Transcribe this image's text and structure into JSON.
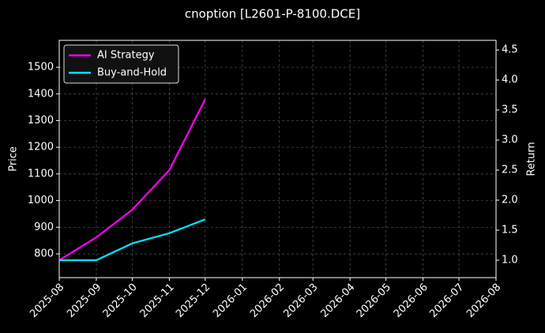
{
  "chart_data": {
    "type": "line",
    "title": "cnoption [L2601-P-8100.DCE]",
    "ylabel": "Price",
    "y2label": "Return",
    "x": [
      "2025-08",
      "2025-09",
      "2025-10",
      "2025-11",
      "2025-12"
    ],
    "series": [
      {
        "name": "AI Strategy",
        "color": "#ff00ff",
        "axis": "y2",
        "values": [
          1.0,
          1.38,
          1.84,
          2.5,
          3.68
        ]
      },
      {
        "name": "Buy-and-Hold",
        "color": "#00e5ff",
        "axis": "y2",
        "values": [
          1.0,
          1.0,
          1.28,
          1.45,
          1.68
        ]
      }
    ],
    "xlim": [
      "2025-08",
      "2026-08"
    ],
    "xticks": [
      "2025-08",
      "2025-09",
      "2025-10",
      "2025-11",
      "2025-12",
      "2026-01",
      "2026-02",
      "2026-03",
      "2026-04",
      "2026-05",
      "2026-06",
      "2026-07",
      "2026-08"
    ],
    "ylim": [
      711,
      1601
    ],
    "yticks": [
      800,
      900,
      1000,
      1100,
      1200,
      1300,
      1400,
      1500
    ],
    "y2lim": [
      0.71,
      4.66
    ],
    "y2ticks": [
      {
        "value": 1,
        "label": "1.0"
      },
      {
        "value": 1.5,
        "label": "1.5"
      },
      {
        "value": 2,
        "label": "2.0"
      },
      {
        "value": 2.5,
        "label": "2.5"
      },
      {
        "value": 3,
        "label": "3.0"
      },
      {
        "value": 3.5,
        "label": "3.5"
      },
      {
        "value": 4,
        "label": "4.0"
      },
      {
        "value": 4.5,
        "label": "4.5"
      }
    ],
    "grid": true,
    "legend": "upper left"
  }
}
